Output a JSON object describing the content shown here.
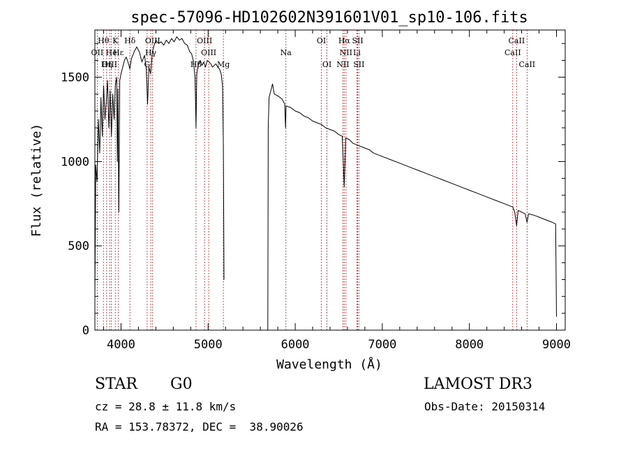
{
  "chart_data": {
    "type": "line",
    "title": "spec-57096-HD102602N391601V01_sp10-106.fits",
    "xlabel": "Wavelength (Å)",
    "ylabel": "Flux (relative)",
    "xlim": [
      3700,
      9100
    ],
    "ylim": [
      0,
      1780
    ],
    "x_ticks": [
      4000,
      5000,
      6000,
      7000,
      8000,
      9000
    ],
    "x_tick_labels": [
      "4000",
      "5000",
      "6000",
      "7000",
      "8000",
      "9000"
    ],
    "y_ticks": [
      0,
      500,
      1000,
      1500
    ],
    "y_tick_labels": [
      "0",
      "500",
      "1000",
      "1500"
    ],
    "grid": false,
    "series": [
      {
        "name": "flux",
        "segments": [
          [
            [
              3700,
              200
            ],
            [
              3710,
              980
            ],
            [
              3725,
              880
            ],
            [
              3740,
              1250
            ],
            [
              3755,
              1050
            ],
            [
              3770,
              1380
            ],
            [
              3785,
              1150
            ],
            [
              3800,
              1450
            ],
            [
              3815,
              1250
            ],
            [
              3830,
              1350
            ],
            [
              3845,
              1480
            ],
            [
              3860,
              1200
            ],
            [
              3875,
              1420
            ],
            [
              3890,
              1150
            ],
            [
              3905,
              1400
            ],
            [
              3920,
              1250
            ],
            [
              3935,
              1450
            ],
            [
              3950,
              1500
            ],
            [
              3958,
              1000
            ],
            [
              3965,
              1430
            ],
            [
              3975,
              700
            ],
            [
              3985,
              1480
            ],
            [
              4000,
              1520
            ],
            [
              4020,
              1560
            ],
            [
              4040,
              1600
            ],
            [
              4060,
              1620
            ],
            [
              4080,
              1590
            ],
            [
              4101,
              1550
            ],
            [
              4120,
              1610
            ],
            [
              4150,
              1650
            ],
            [
              4180,
              1680
            ],
            [
              4210,
              1650
            ],
            [
              4240,
              1590
            ],
            [
              4270,
              1630
            ],
            [
              4290,
              1550
            ],
            [
              4305,
              1340
            ],
            [
              4320,
              1560
            ],
            [
              4340,
              1520
            ],
            [
              4360,
              1650
            ],
            [
              4380,
              1690
            ],
            [
              4400,
              1720
            ],
            [
              4430,
              1700
            ],
            [
              4460,
              1710
            ],
            [
              4490,
              1690
            ],
            [
              4520,
              1720
            ],
            [
              4550,
              1700
            ],
            [
              4580,
              1730
            ],
            [
              4610,
              1710
            ],
            [
              4640,
              1740
            ],
            [
              4670,
              1720
            ],
            [
              4700,
              1730
            ],
            [
              4730,
              1700
            ],
            [
              4760,
              1690
            ],
            [
              4790,
              1650
            ],
            [
              4810,
              1640
            ],
            [
              4830,
              1600
            ],
            [
              4850,
              1500
            ],
            [
              4861,
              1200
            ],
            [
              4870,
              1520
            ],
            [
              4890,
              1580
            ],
            [
              4910,
              1600
            ],
            [
              4930,
              1570
            ],
            [
              4950,
              1590
            ],
            [
              4970,
              1560
            ],
            [
              4990,
              1600
            ],
            [
              5010,
              1590
            ],
            [
              5030,
              1580
            ],
            [
              5050,
              1560
            ],
            [
              5070,
              1570
            ],
            [
              5090,
              1580
            ],
            [
              5110,
              1560
            ],
            [
              5130,
              1550
            ],
            [
              5150,
              1520
            ],
            [
              5165,
              1450
            ],
            [
              5175,
              1100
            ],
            [
              5182,
              300
            ]
          ],
          [
            [
              5685,
              0
            ],
            [
              5690,
              1200
            ],
            [
              5700,
              1380
            ],
            [
              5720,
              1420
            ],
            [
              5740,
              1460
            ],
            [
              5760,
              1400
            ],
            [
              5800,
              1390
            ],
            [
              5850,
              1370
            ],
            [
              5880,
              1340
            ],
            [
              5889,
              1200
            ],
            [
              5895,
              1330
            ],
            [
              5950,
              1320
            ],
            [
              6000,
              1300
            ],
            [
              6050,
              1290
            ],
            [
              6100,
              1270
            ],
            [
              6150,
              1260
            ],
            [
              6200,
              1240
            ],
            [
              6250,
              1230
            ],
            [
              6300,
              1220
            ],
            [
              6350,
              1200
            ],
            [
              6400,
              1190
            ],
            [
              6450,
              1180
            ],
            [
              6500,
              1160
            ],
            [
              6540,
              1150
            ],
            [
              6563,
              850
            ],
            [
              6580,
              1140
            ],
            [
              6620,
              1130
            ],
            [
              6660,
              1110
            ],
            [
              6700,
              1100
            ],
            [
              6750,
              1090
            ],
            [
              6800,
              1080
            ],
            [
              6850,
              1070
            ],
            [
              6900,
              1050
            ],
            [
              7000,
              1030
            ],
            [
              7100,
              1010
            ],
            [
              7200,
              990
            ],
            [
              7300,
              970
            ],
            [
              7400,
              950
            ],
            [
              7500,
              930
            ],
            [
              7600,
              910
            ],
            [
              7700,
              890
            ],
            [
              7800,
              870
            ],
            [
              7900,
              850
            ],
            [
              8000,
              830
            ],
            [
              8100,
              810
            ],
            [
              8200,
              790
            ],
            [
              8300,
              770
            ],
            [
              8400,
              750
            ],
            [
              8500,
              730
            ],
            [
              8520,
              700
            ],
            [
              8542,
              620
            ],
            [
              8560,
              710
            ],
            [
              8600,
              700
            ],
            [
              8640,
              690
            ],
            [
              8662,
              640
            ],
            [
              8680,
              690
            ],
            [
              8750,
              680
            ],
            [
              8800,
              670
            ],
            [
              8850,
              660
            ],
            [
              8900,
              650
            ],
            [
              8950,
              640
            ],
            [
              8990,
              630
            ],
            [
              9000,
              80
            ]
          ]
        ]
      }
    ],
    "lines": [
      {
        "name": "Hθ",
        "wavelength": 3798,
        "row": 0
      },
      {
        "name": "K",
        "wavelength": 3934,
        "row": 0
      },
      {
        "name": "Hδ",
        "wavelength": 4102,
        "row": 0
      },
      {
        "name": "OIII",
        "wavelength": 4363,
        "row": 0
      },
      {
        "name": "OIII",
        "wavelength": 4959,
        "row": 0
      },
      {
        "name": "OI",
        "wavelength": 6300,
        "row": 0
      },
      {
        "name": "Hα",
        "wavelength": 6563,
        "row": 0
      },
      {
        "name": "SII",
        "wavelength": 6717,
        "row": 0
      },
      {
        "name": "CaII",
        "wavelength": 8542,
        "row": 0
      },
      {
        "name": "OII",
        "wavelength": 3727,
        "row": 1
      },
      {
        "name": "He",
        "wavelength": 3889,
        "row": 1
      },
      {
        "name": "Hε",
        "wavelength": 3970,
        "row": 1
      },
      {
        "name": "Hγ",
        "wavelength": 4341,
        "row": 1
      },
      {
        "name": "OIII",
        "wavelength": 5007,
        "row": 1
      },
      {
        "name": "Na",
        "wavelength": 5893,
        "row": 1
      },
      {
        "name": "NII",
        "wavelength": 6583,
        "row": 1
      },
      {
        "name": "Li",
        "wavelength": 6708,
        "row": 1
      },
      {
        "name": "CaII",
        "wavelength": 8498,
        "row": 1
      },
      {
        "name": "OIII",
        "wavelength": 3869,
        "row": 2
      },
      {
        "name": "Hη",
        "wavelength": 3835,
        "row": 2
      },
      {
        "name": "G",
        "wavelength": 4300,
        "row": 2
      },
      {
        "name": "Hβ",
        "wavelength": 4861,
        "row": 2
      },
      {
        "name": "Mg",
        "wavelength": 5175,
        "row": 2
      },
      {
        "name": "OI",
        "wavelength": 6364,
        "row": 2
      },
      {
        "name": "NII",
        "wavelength": 6548,
        "row": 2
      },
      {
        "name": "SII",
        "wavelength": 6731,
        "row": 2
      },
      {
        "name": "CaII",
        "wavelength": 8662,
        "row": 2
      }
    ]
  },
  "info": {
    "object_class": "STAR",
    "subclass": "G0",
    "survey": "LAMOST DR3",
    "cz": "cz = 28.8 ± 11.8 km/s",
    "obs_date": "Obs-Date: 20150314",
    "coords": "RA = 153.78372, DEC =  38.90026"
  },
  "colors": {
    "spectrum": "#000000",
    "line_marker": "#b22222",
    "text": "#000000"
  }
}
